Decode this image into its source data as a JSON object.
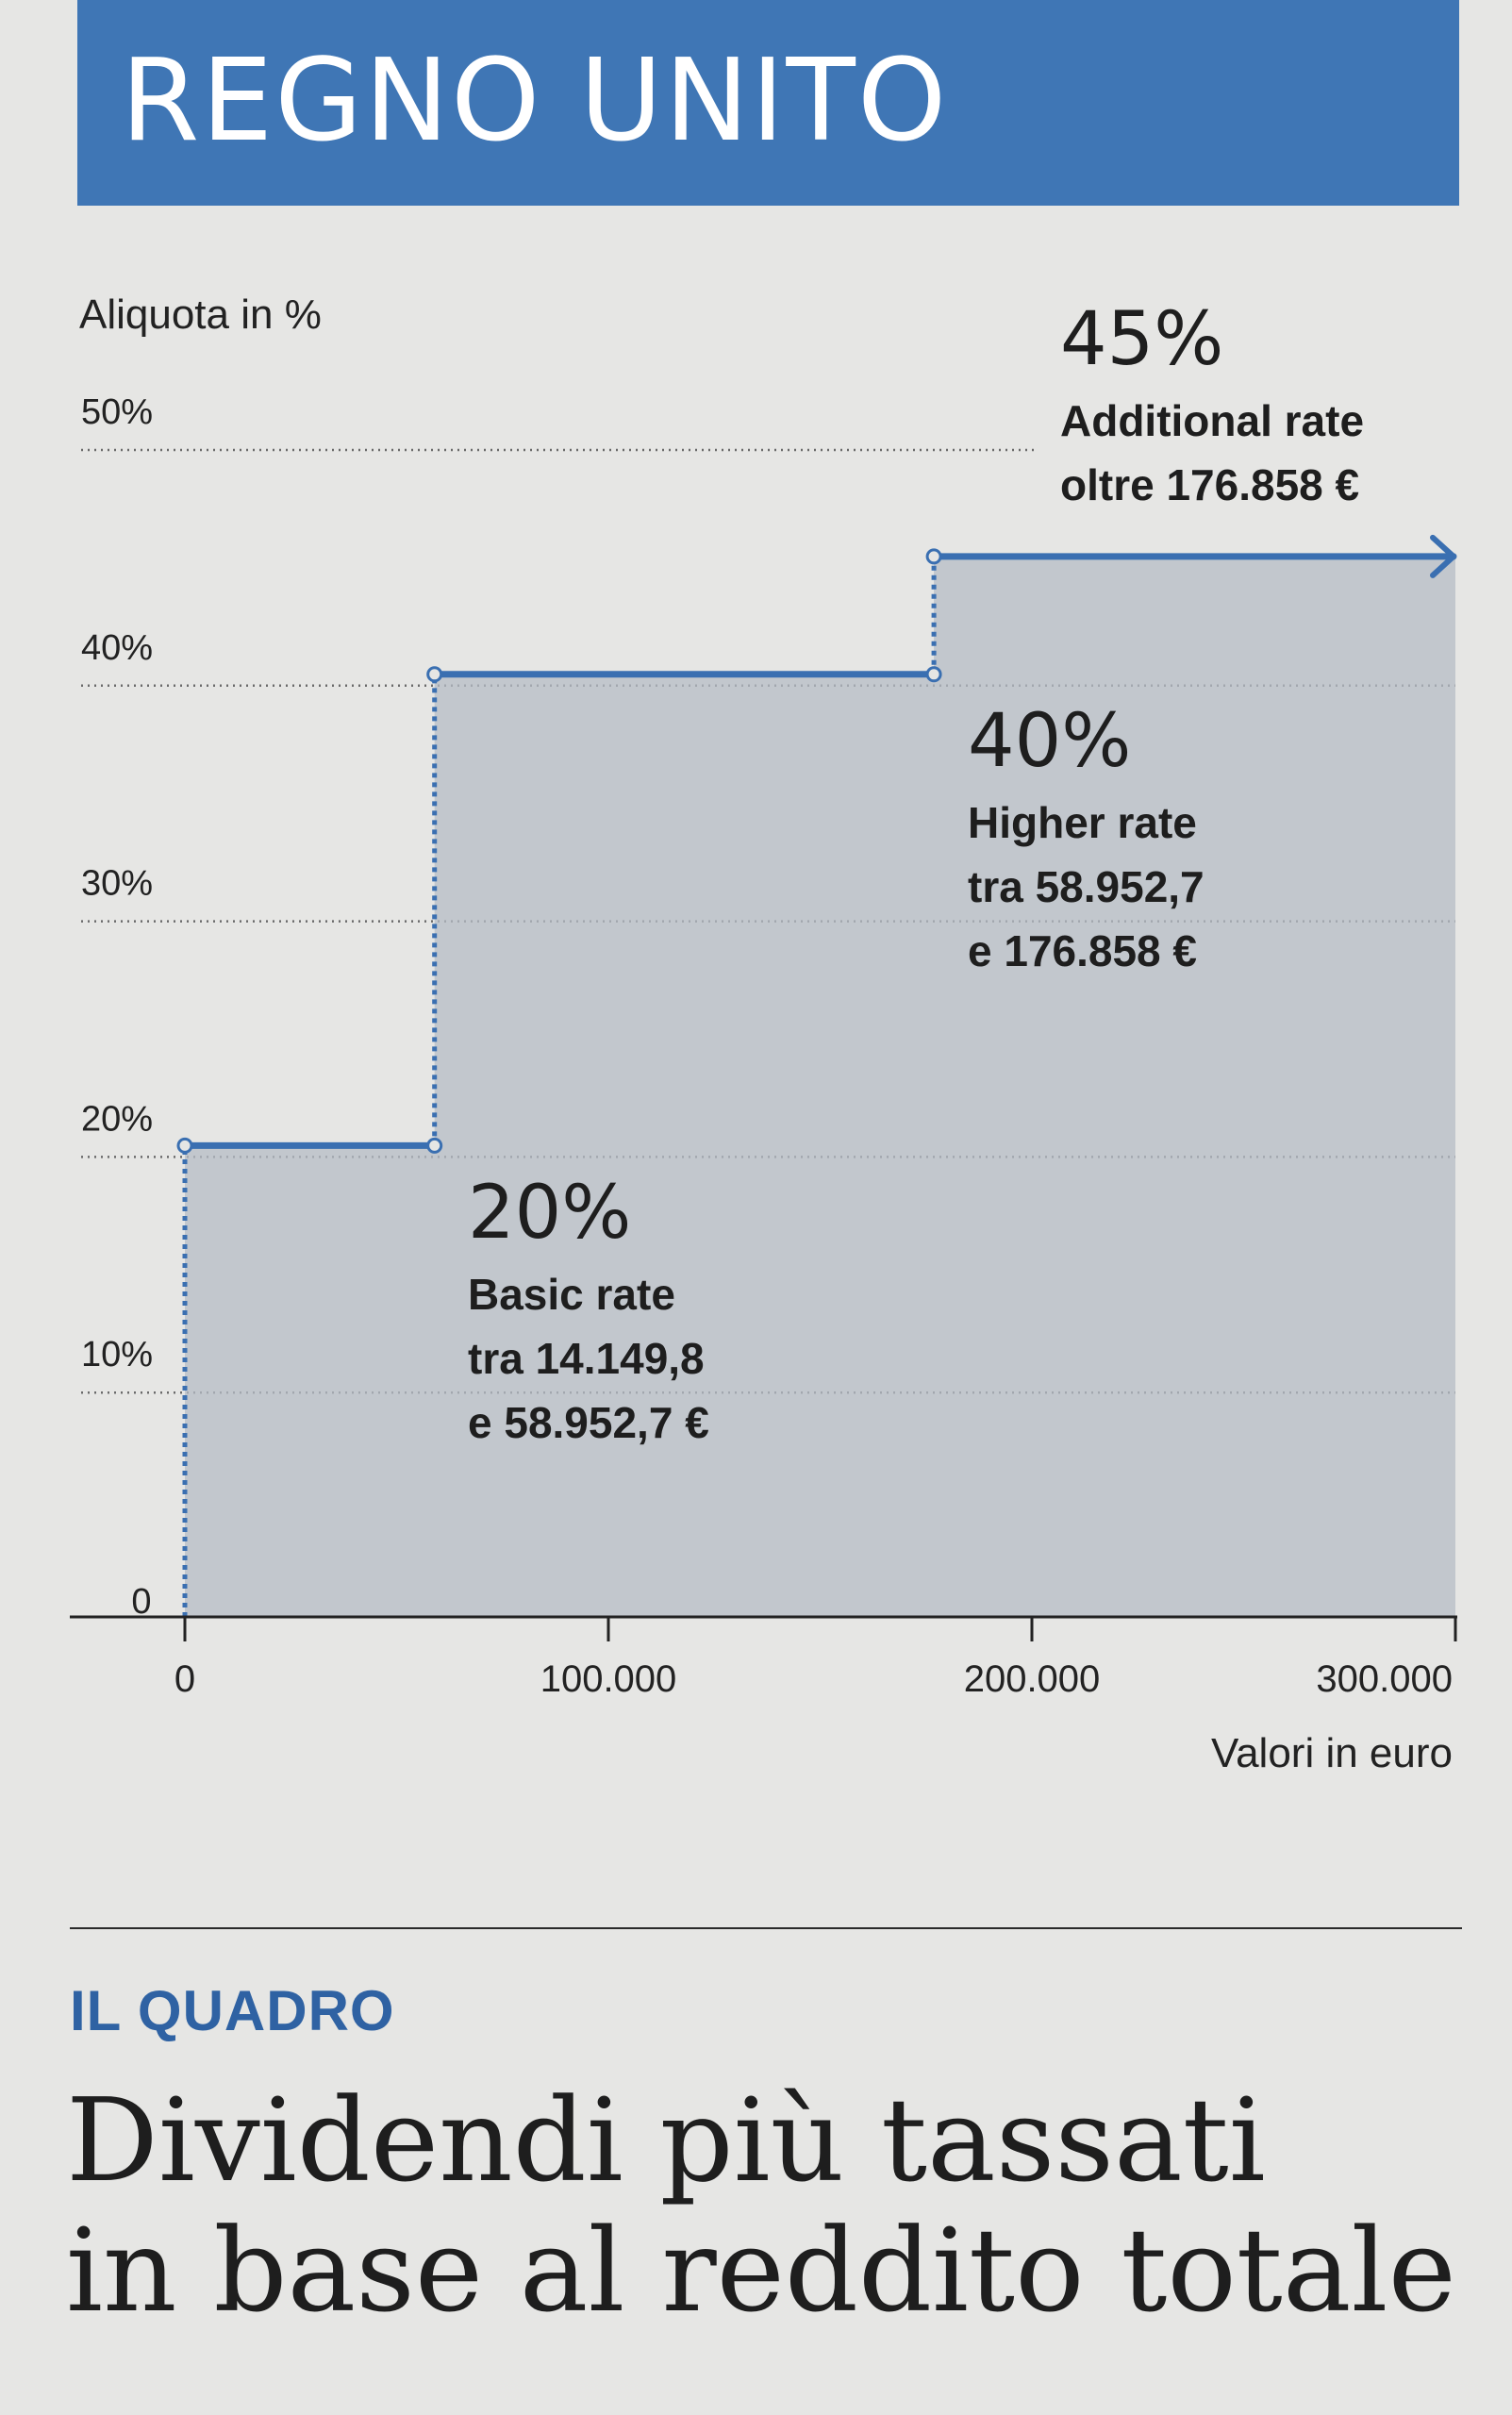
{
  "header": {
    "title": "REGNO UNITO"
  },
  "chart_data": {
    "type": "line",
    "step": true,
    "title": "",
    "ylabel": "Aliquota in %",
    "xlabel": "Valori in euro",
    "xlim": [
      0,
      300000
    ],
    "ylim": [
      0,
      50
    ],
    "grid": true,
    "x_ticks": [
      {
        "value": 0,
        "label": "0"
      },
      {
        "value": 100000,
        "label": "100.000"
      },
      {
        "value": 200000,
        "label": "200.000"
      },
      {
        "value": 300000,
        "label": "300.000"
      }
    ],
    "y_ticks": [
      {
        "value": 0,
        "label": "0"
      },
      {
        "value": 10,
        "label": "10%"
      },
      {
        "value": 20,
        "label": "20%"
      },
      {
        "value": 30,
        "label": "30%"
      },
      {
        "value": 40,
        "label": "40%"
      },
      {
        "value": 50,
        "label": "50%"
      }
    ],
    "steps": [
      {
        "x_start": 0,
        "x_end": 58952.7,
        "rate": 20
      },
      {
        "x_start": 58952.7,
        "x_end": 176858,
        "rate": 40
      },
      {
        "x_start": 176858,
        "x_end": 300000,
        "rate": 45
      }
    ],
    "annotations": [
      {
        "value": "20%",
        "name": "Basic rate",
        "line1": "tra 14.149,8",
        "line2": "e 58.952,7 €"
      },
      {
        "value": "40%",
        "name": "Higher rate",
        "line1": "tra 58.952,7",
        "line2": "e 176.858 €"
      },
      {
        "value": "45%",
        "name": "Additional rate",
        "line1": "oltre 176.858 €",
        "line2": ""
      }
    ],
    "colors": {
      "line": "#3a6fb1",
      "fill": "#b5bcc6",
      "grid": "#6a6a6a",
      "axis": "#222222"
    }
  },
  "section": {
    "kicker": "IL QUADRO",
    "headline_line1": "Dividendi più tassati",
    "headline_line2": "in base al reddito totale"
  }
}
